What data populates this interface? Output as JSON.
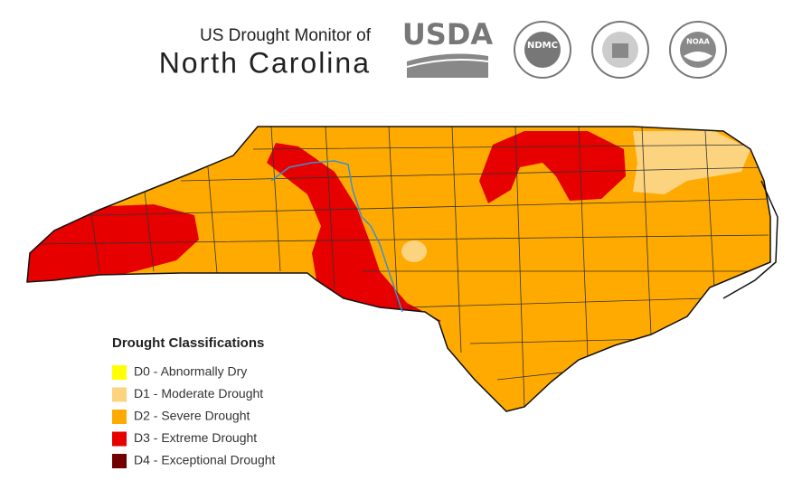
{
  "header": {
    "subtitle": "US Drought Monitor of",
    "title": "North Carolina"
  },
  "logos": [
    "USDA",
    "NDMC",
    "NOAA"
  ],
  "legend": {
    "title": "Drought Classifications",
    "items": [
      {
        "label": "D0 - Abnormally Dry",
        "color": "#ffff00"
      },
      {
        "label": "D1 - Moderate Drought",
        "color": "#fcd37f"
      },
      {
        "label": "D2 - Severe Drought",
        "color": "#ffaa00"
      },
      {
        "label": "D3 - Extreme Drought",
        "color": "#e60000"
      },
      {
        "label": "D4 - Exceptional Drought",
        "color": "#730000"
      }
    ]
  }
}
